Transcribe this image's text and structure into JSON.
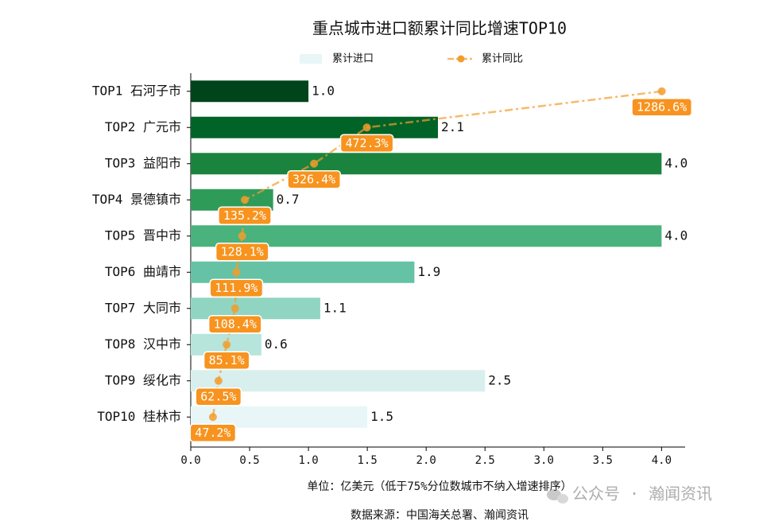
{
  "chart_data": {
    "type": "bar",
    "title": "重点城市进口额累计同比增速TOP10",
    "categories": [
      "TOP1 石河子市",
      "TOP2 广元市",
      "TOP3 益阳市",
      "TOP4 景德镇市",
      "TOP5 晋中市",
      "TOP6 曲靖市",
      "TOP7 大同市",
      "TOP8 汉中市",
      "TOP9 绥化市",
      "TOP10 桂林市"
    ],
    "series": [
      {
        "name": "累计进口",
        "type": "bar",
        "colors": [
          "#00441b",
          "#006428",
          "#1a843f",
          "#2e9b59",
          "#4ab27d",
          "#66c2a4",
          "#90d5c2",
          "#b7e4db",
          "#d8efed",
          "#e8f6f8"
        ],
        "values": [
          1.0,
          2.1,
          4.0,
          0.7,
          4.0,
          1.9,
          1.1,
          0.6,
          2.5,
          1.5
        ],
        "value_labels": [
          "1.0",
          "2.1",
          "4.0",
          "0.7",
          "4.0",
          "1.9",
          "1.1",
          "0.6",
          "2.5",
          "1.5"
        ]
      },
      {
        "name": "累计同比",
        "type": "line",
        "axis": "x2",
        "color": "#f39c2b",
        "values": [
          1286.6,
          472.3,
          326.4,
          135.2,
          128.1,
          111.9,
          108.4,
          85.1,
          62.5,
          47.2
        ],
        "value_labels": [
          "1286.6%",
          "472.3%",
          "326.4%",
          "135.2%",
          "128.1%",
          "111.9%",
          "108.4%",
          "85.1%",
          "62.5%",
          "47.2%"
        ]
      }
    ],
    "xlim": [
      0,
      4.2
    ],
    "xticks": [
      {
        "value": 0,
        "label": "0.0"
      },
      0.5,
      {
        "value": 1,
        "label": "1.0"
      },
      1.5,
      {
        "value": 2,
        "label": "2.0"
      },
      2.5,
      {
        "value": 3,
        "label": "3.0"
      },
      3.5,
      {
        "value": 4,
        "label": "4.0"
      }
    ],
    "x2lim": [
      -14,
      1351
    ],
    "legend": "upper center",
    "notes": [
      "单位：亿美元（低于75%分位数城市不纳入增速排序）",
      "数据来源：中国海关总署、瀚闻资讯"
    ],
    "watermark": "公众号 · 瀚闻资讯"
  }
}
